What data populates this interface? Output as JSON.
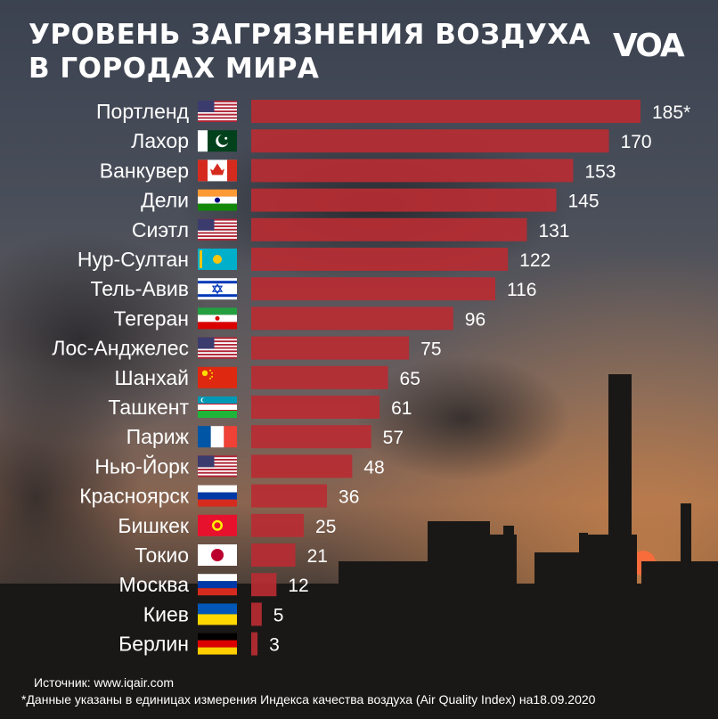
{
  "header": {
    "title_line1": "УРОВЕНЬ ЗАГРЯЗНЕНИЯ ВОЗДУХА",
    "title_line2": "В ГОРОДАХ МИРА",
    "logo_text": "VOA"
  },
  "footer": {
    "source": "Источник: www.iqair.com",
    "note": "*Данные указаны в единицах измерения Индекса качества воздуха (Air Quality Index) на18.09.2020"
  },
  "colors": {
    "bar": "#b72c33",
    "text": "#ffffff"
  },
  "chart_data": {
    "type": "bar",
    "orientation": "horizontal",
    "title": "УРОВЕНЬ ЗАГРЯЗНЕНИЯ ВОЗДУХА В ГОРОДАХ МИРА",
    "xlabel": "",
    "ylabel": "",
    "xlim": [
      0,
      185
    ],
    "categories": [
      "Портленд",
      "Лахор",
      "Ванкувер",
      "Дели",
      "Сиэтл",
      "Нур-Султан",
      "Тель-Авив",
      "Тегеран",
      "Лос-Анджелес",
      "Шанхай",
      "Ташкент",
      "Париж",
      "Нью-Йорк",
      "Красноярск",
      "Бишкек",
      "Токио",
      "Москва",
      "Киев",
      "Берлин"
    ],
    "values": [
      185,
      170,
      153,
      145,
      131,
      122,
      116,
      96,
      75,
      65,
      61,
      57,
      48,
      36,
      25,
      21,
      12,
      5,
      3
    ],
    "value_labels": [
      "185*",
      "170",
      "153",
      "145",
      "131",
      "122",
      "116",
      "96",
      "75",
      "65",
      "61",
      "57",
      "48",
      "36",
      "25",
      "21",
      "12",
      "5",
      "3"
    ],
    "flags": [
      "usa-flag-icon",
      "pakistan-flag-icon",
      "canada-flag-icon",
      "india-flag-icon",
      "usa-flag-icon",
      "kazakhstan-flag-icon",
      "israel-flag-icon",
      "iran-flag-icon",
      "usa-flag-icon",
      "china-flag-icon",
      "uzbekistan-flag-icon",
      "france-flag-icon",
      "usa-flag-icon",
      "russia-flag-icon",
      "kyrgyzstan-flag-icon",
      "japan-flag-icon",
      "russia-flag-icon",
      "ukraine-flag-icon",
      "germany-flag-icon"
    ]
  }
}
